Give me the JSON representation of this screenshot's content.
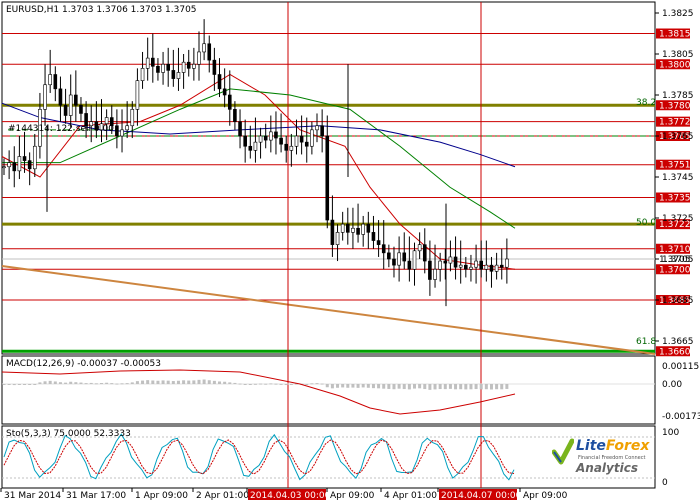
{
  "symbol_header": "EURUSD,H1  1.3703  1.3706  1.3703  1.3705",
  "macd_label": "MACD(12,26,9) -0.00037 -0.00053",
  "stoch_label": "Sto(5,3,3) 75.0000 52.3333",
  "trendline_label": "#144314: 122 sell 0.00",
  "fib_labels": {
    "f382": "38.2",
    "f500": "50.0",
    "f618": "61.8"
  },
  "price_scale": [
    "1.3825",
    "1.3805",
    "1.3785",
    "1.3765",
    "1.3745",
    "1.3725",
    "1.3705",
    "1.3685",
    "1.3665"
  ],
  "levels": [
    {
      "price": 1.3815,
      "label": "1.3815"
    },
    {
      "price": 1.38,
      "label": "1.3800"
    },
    {
      "price": 1.378,
      "label": "1.3780"
    },
    {
      "price": 1.3772,
      "label": "1.3772"
    },
    {
      "price": 1.3765,
      "label": "1.3765"
    },
    {
      "price": 1.3751,
      "label": "1.3751"
    },
    {
      "price": 1.3735,
      "label": "1.3735"
    },
    {
      "price": 1.3722,
      "label": "1.3722"
    },
    {
      "price": 1.371,
      "label": "1.3710"
    },
    {
      "price": 1.3705,
      "label": "1.3705"
    },
    {
      "price": 1.37,
      "label": "1.3700"
    },
    {
      "price": 1.3685,
      "label": "1.3685"
    },
    {
      "price": 1.366,
      "label": "1.3660"
    }
  ],
  "macd_scale": [
    "0.00115",
    "0.00",
    "-0.00173"
  ],
  "stoch_scale": [
    "100",
    "0"
  ],
  "time_axis": [
    {
      "label": "31 Mar 2014",
      "hl": false
    },
    {
      "label": "31 Mar 17:00",
      "hl": false
    },
    {
      "label": "1 Apr 09:00",
      "hl": false
    },
    {
      "label": "2 Apr 01:00",
      "hl": false
    },
    {
      "label": "2014.04.03 00:00",
      "hl": true
    },
    {
      "label": "Apr 09:00",
      "hl": false
    },
    {
      "label": "4 Apr 01:00",
      "hl": false
    },
    {
      "label": "2014.04.07 00:00",
      "hl": true
    },
    {
      "label": "Apr 09:00",
      "hl": false
    }
  ],
  "logo": {
    "brand_a": "Lite",
    "brand_b": "Forex",
    "tagline": "Financial Freedom Connect",
    "analytics": "Analytics"
  },
  "colors": {
    "level_red": "#cc0000",
    "fib_green": "#006400",
    "fib_line": "#808000",
    "ma_red": "#cc0000",
    "ma_green": "#008000",
    "ma_blue": "#00008b",
    "trend": "#cd853f",
    "macd_hist": "#c0c0c0"
  }
}
